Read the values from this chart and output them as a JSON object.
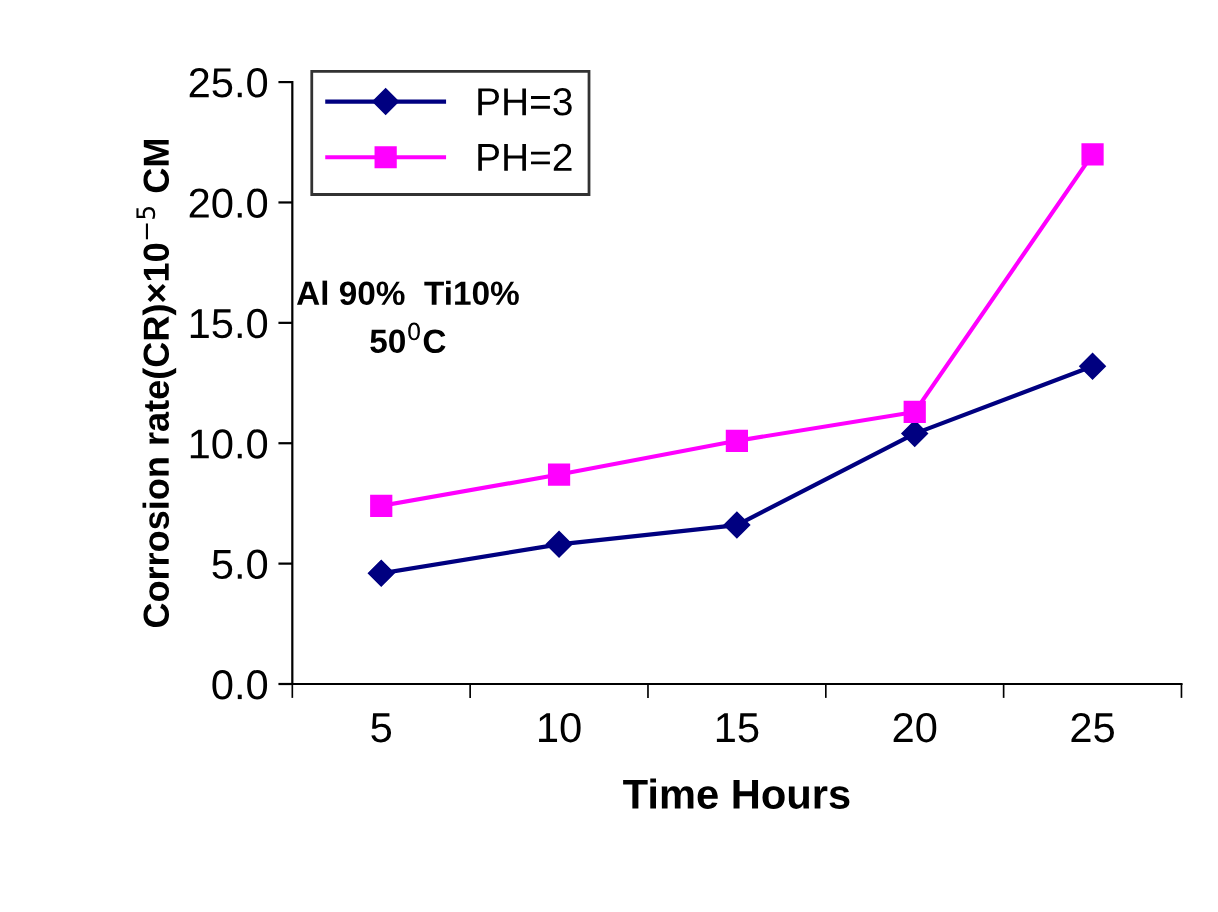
{
  "chart_data": {
    "type": "line",
    "xlabel": "Time Hours",
    "ylabel": "Corrosion rate(CR)×10$^{−5}$ CM",
    "categories": [
      "5",
      "10",
      "15",
      "20",
      "25"
    ],
    "series": [
      {
        "name": "PH=3",
        "color": "#000080",
        "marker": "diamond",
        "values": [
          4.6,
          5.8,
          6.6,
          10.4,
          13.2
        ]
      },
      {
        "name": "PH=2",
        "color": "#ff00ff",
        "marker": "square",
        "values": [
          7.4,
          8.7,
          10.1,
          11.3,
          22.0
        ]
      }
    ],
    "ylim": [
      0,
      25
    ],
    "yticks": [
      {
        "value": 0,
        "label": "0.0"
      },
      {
        "value": 5,
        "label": "5.0"
      },
      {
        "value": 10,
        "label": "10.0"
      },
      {
        "value": 15,
        "label": "15.0"
      },
      {
        "value": 20,
        "label": "20.0"
      },
      {
        "value": 25,
        "label": "25.0"
      }
    ],
    "annotations": [
      "Al 90%  Ti10%",
      "50$^{0}$C"
    ],
    "legend": "top left",
    "grid": false,
    "line_style": "solid"
  }
}
